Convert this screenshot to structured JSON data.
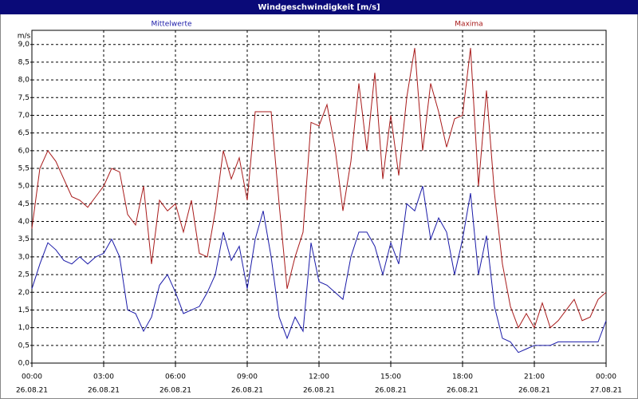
{
  "chart_data": {
    "type": "line",
    "title": "Windgeschwindigkeit [m/s]",
    "ylabel": "m/s",
    "x": [
      0,
      20,
      40,
      60,
      80,
      100,
      120,
      140,
      160,
      180,
      200,
      220,
      240,
      260,
      280,
      300,
      320,
      340,
      360,
      380,
      400,
      420,
      440,
      460,
      480,
      500,
      520,
      540,
      560,
      580,
      600,
      620,
      640,
      660,
      680,
      700,
      720,
      740,
      760,
      780,
      800,
      820,
      840,
      860,
      880,
      900,
      920,
      940,
      960,
      980,
      1000,
      1020,
      1040,
      1060,
      1080,
      1100,
      1120,
      1140,
      1160,
      1180,
      1200,
      1220,
      1240,
      1260,
      1280,
      1300,
      1320,
      1340,
      1360,
      1380,
      1400,
      1420,
      1440
    ],
    "series": [
      {
        "name": "Mittelwerte",
        "color": "#1a1aa8",
        "values": [
          2.1,
          2.8,
          3.4,
          3.2,
          2.9,
          2.8,
          3.0,
          2.8,
          3.0,
          3.1,
          3.5,
          3.0,
          1.5,
          1.4,
          0.9,
          1.3,
          2.2,
          2.5,
          2.0,
          1.4,
          1.5,
          1.6,
          2.0,
          2.5,
          3.7,
          2.9,
          3.3,
          2.1,
          3.5,
          4.3,
          3.0,
          1.3,
          0.7,
          1.3,
          0.9,
          3.4,
          2.3,
          2.2,
          2.0,
          1.8,
          3.0,
          3.7,
          3.7,
          3.3,
          2.5,
          3.4,
          2.8,
          4.5,
          4.3,
          5.0,
          3.5,
          4.1,
          3.7,
          2.5,
          3.5,
          4.8,
          2.5,
          3.6,
          1.6,
          0.7,
          0.6,
          0.3,
          0.4,
          0.5,
          0.5,
          0.5,
          0.6,
          0.6,
          0.6,
          0.6,
          0.6,
          0.6,
          1.2
        ]
      },
      {
        "name": "Maxima",
        "color": "#a81a1a",
        "values": [
          3.8,
          5.5,
          6.0,
          5.7,
          5.2,
          4.7,
          4.6,
          4.4,
          4.7,
          5.0,
          5.5,
          5.4,
          4.2,
          3.9,
          5.0,
          2.8,
          4.6,
          4.3,
          4.5,
          3.7,
          4.6,
          3.1,
          3.0,
          4.3,
          6.0,
          5.2,
          5.8,
          4.6,
          7.1,
          7.1,
          7.1,
          4.5,
          2.1,
          3.0,
          3.7,
          6.8,
          6.7,
          7.3,
          6.1,
          4.3,
          5.7,
          7.9,
          6.0,
          8.2,
          5.2,
          7.0,
          5.3,
          7.5,
          8.9,
          6.0,
          7.9,
          7.1,
          6.1,
          6.9,
          7.0,
          8.9,
          5.0,
          7.7,
          4.8,
          2.8,
          1.6,
          1.0,
          1.4,
          1.0,
          1.7,
          1.0,
          1.2,
          1.5,
          1.8,
          1.2,
          1.3,
          1.8,
          2.0
        ]
      }
    ],
    "xlim": [
      0,
      1440
    ],
    "xticks": [
      {
        "value": 0,
        "label": "00:00"
      },
      {
        "value": 180,
        "label": "03:00"
      },
      {
        "value": 360,
        "label": "06:00"
      },
      {
        "value": 540,
        "label": "09:00"
      },
      {
        "value": 720,
        "label": "12:00"
      },
      {
        "value": 900,
        "label": "15:00"
      },
      {
        "value": 1080,
        "label": "18:00"
      },
      {
        "value": 1260,
        "label": "21:00"
      },
      {
        "value": 1440,
        "label": "00:00"
      }
    ],
    "xtick_dates": [
      "26.08.21",
      "26.08.21",
      "26.08.21",
      "26.08.21",
      "26.08.21",
      "26.08.21",
      "26.08.21",
      "26.08.21",
      "27.08.21"
    ],
    "ylim": [
      0,
      9.4
    ],
    "yticks": [
      {
        "value": 0,
        "label": "0,0"
      },
      {
        "value": 0.5,
        "label": "0,5"
      },
      {
        "value": 1,
        "label": "1,0"
      },
      {
        "value": 1.5,
        "label": "1,5"
      },
      {
        "value": 2,
        "label": "2,0"
      },
      {
        "value": 2.5,
        "label": "2,5"
      },
      {
        "value": 3,
        "label": "3,0"
      },
      {
        "value": 3.5,
        "label": "3,5"
      },
      {
        "value": 4,
        "label": "4,0"
      },
      {
        "value": 4.5,
        "label": "4,5"
      },
      {
        "value": 5,
        "label": "5,0"
      },
      {
        "value": 5.5,
        "label": "5,5"
      },
      {
        "value": 6,
        "label": "6,0"
      },
      {
        "value": 6.5,
        "label": "6,5"
      },
      {
        "value": 7,
        "label": "7,0"
      },
      {
        "value": 7.5,
        "label": "7,5"
      },
      {
        "value": 8,
        "label": "8,0"
      },
      {
        "value": 8.5,
        "label": "8,5"
      },
      {
        "value": 9,
        "label": "9,0"
      }
    ],
    "grid": true
  }
}
